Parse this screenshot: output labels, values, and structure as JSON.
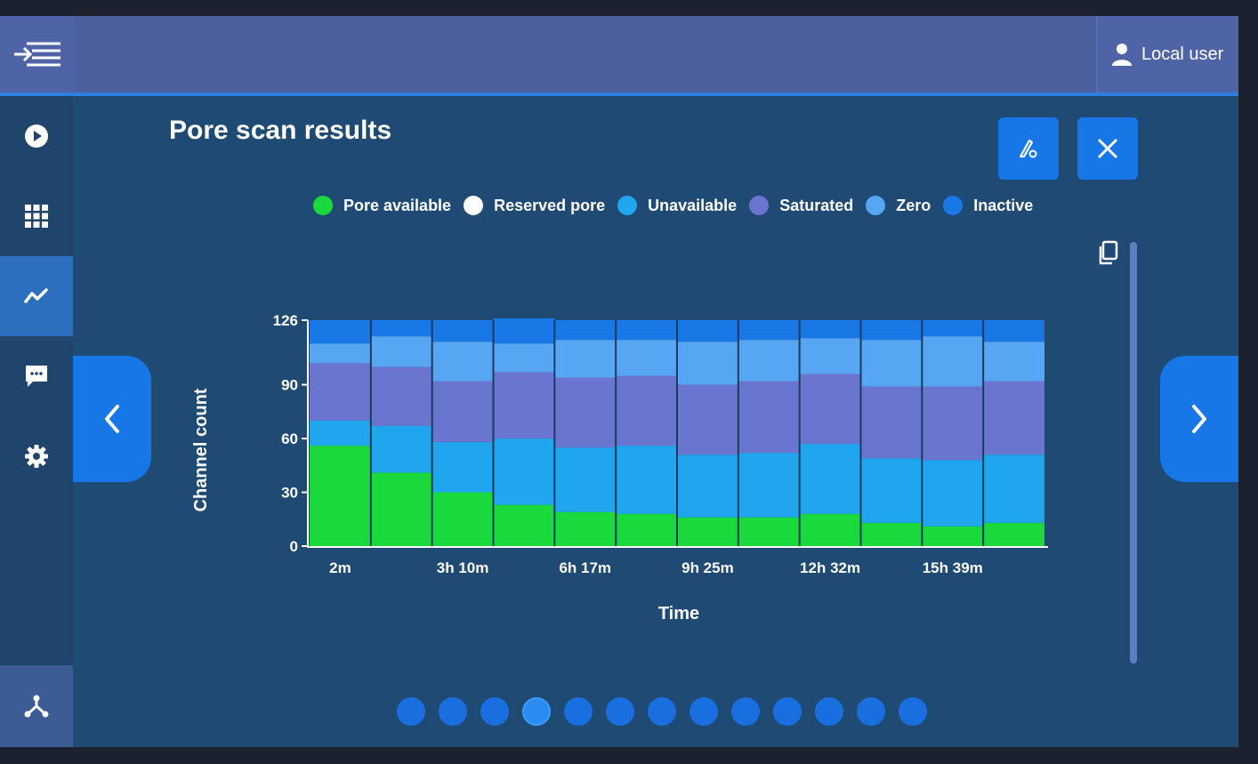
{
  "header": {
    "user_label": "Local user"
  },
  "sidebar": {
    "items": [
      {
        "icon": "play-icon"
      },
      {
        "icon": "grid-icon"
      },
      {
        "icon": "chart-icon",
        "active": true
      },
      {
        "icon": "message-icon"
      },
      {
        "icon": "gear-icon"
      }
    ],
    "bottom_icon": "network-icon"
  },
  "page": {
    "title": "Pore scan results"
  },
  "legend": [
    {
      "label": "Pore available",
      "color": "#19d93c"
    },
    {
      "label": "Reserved pore",
      "color": "#ffffff"
    },
    {
      "label": "Unavailable",
      "color": "#1fa6ef"
    },
    {
      "label": "Saturated",
      "color": "#6a75cf"
    },
    {
      "label": "Zero",
      "color": "#57a6f4"
    },
    {
      "label": "Inactive",
      "color": "#1878e6"
    }
  ],
  "chart_data": {
    "type": "bar",
    "stacked": true,
    "xlabel": "Time",
    "ylabel": "Channel count",
    "ylim": [
      0,
      126
    ],
    "yticks": [
      0,
      30,
      60,
      90,
      126
    ],
    "xtick_labels": [
      {
        "index": 0,
        "label": "2m"
      },
      {
        "index": 2,
        "label": "3h 10m"
      },
      {
        "index": 4,
        "label": "6h 17m"
      },
      {
        "index": 6,
        "label": "9h 25m"
      },
      {
        "index": 8,
        "label": "12h 32m"
      },
      {
        "index": 10,
        "label": "15h 39m"
      }
    ],
    "categories": [
      "2m",
      "",
      "3h 10m",
      "",
      "6h 17m",
      "",
      "9h 25m",
      "",
      "12h 32m",
      "",
      "15h 39m",
      ""
    ],
    "series": [
      {
        "name": "Pore available",
        "color": "#19d93c",
        "values": [
          56,
          41,
          30,
          23,
          19,
          18,
          16,
          16,
          18,
          13,
          11,
          13
        ]
      },
      {
        "name": "Unavailable",
        "color": "#1fa6ef",
        "values": [
          14,
          26,
          28,
          37,
          36,
          38,
          35,
          36,
          39,
          36,
          37,
          38
        ]
      },
      {
        "name": "Saturated",
        "color": "#6a75cf",
        "values": [
          32,
          33,
          34,
          37,
          39,
          39,
          39,
          40,
          39,
          40,
          41,
          41
        ]
      },
      {
        "name": "Zero",
        "color": "#57a6f4",
        "values": [
          11,
          17,
          22,
          16,
          21,
          20,
          24,
          23,
          20,
          26,
          28,
          22
        ]
      },
      {
        "name": "Inactive",
        "color": "#1878e6",
        "values": [
          13,
          9,
          12,
          14,
          11,
          11,
          12,
          11,
          10,
          11,
          9,
          12
        ]
      }
    ],
    "grid": false,
    "legend_position": "top"
  },
  "pager": {
    "count": 13,
    "active_index": 3
  }
}
